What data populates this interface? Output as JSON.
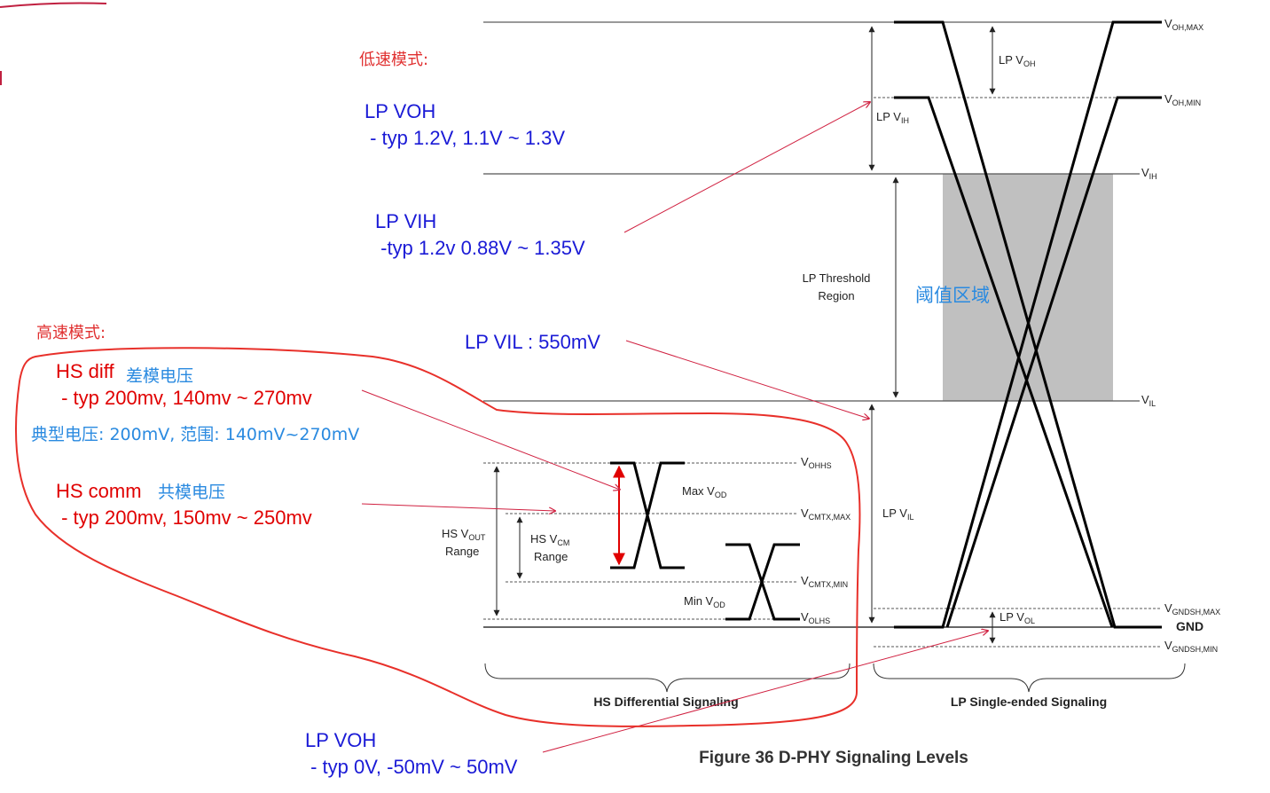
{
  "labels": {
    "voh_max": "V",
    "voh_max_sub": "OH,MAX",
    "voh_min": "V",
    "voh_min_sub": "OH,MIN",
    "vih": "V",
    "vih_sub": "IH",
    "vil": "V",
    "vil_sub": "IL",
    "vgndsh_max": "V",
    "vgndsh_max_sub": "GNDSH,MAX",
    "gnd": "GND",
    "vgndsh_min": "V",
    "vgndsh_min_sub": "GNDSH,MIN",
    "vohhs": "V",
    "vohhs_sub": "OHHS",
    "vcmtx_max": "V",
    "vcmtx_max_sub": "CMTX,MAX",
    "vcmtx_min": "V",
    "vcmtx_min_sub": "CMTX,MIN",
    "volhs": "V",
    "volhs_sub": "OLHS",
    "lp_voh": "LP V",
    "lp_voh_sub": "OH",
    "lp_vih": "LP V",
    "lp_vih_sub": "IH",
    "lp_threshold_1": "LP Threshold",
    "lp_threshold_2": "Region",
    "lp_vil": "LP V",
    "lp_vil_sub": "IL",
    "lp_vol": "LP V",
    "lp_vol_sub": "OL",
    "hs_vout_1": "HS V",
    "hs_vout_sub": "OUT",
    "hs_vout_2": "Range",
    "hs_vcm_1": "HS V",
    "hs_vcm_sub": "CM",
    "hs_vcm_2": "Range",
    "max_vod": "Max V",
    "max_vod_sub": "OD",
    "min_vod": "Min V",
    "min_vod_sub": "OD",
    "hs_section": "HS Differential Signaling",
    "lp_section": "LP Single-ended Signaling",
    "figure_caption": "Figure 36 D-PHY Signaling Levels"
  },
  "annotations": {
    "low_speed_mode": "低速模式:",
    "lp_voh_title": "LP VOH",
    "lp_voh_value": " - typ 1.2V, 1.1V ~ 1.3V",
    "lp_vih_title": "LP VIH",
    "lp_vih_value": " -typ 1.2v 0.88V ~ 1.35V",
    "threshold_zone": "阈值区域",
    "lp_vil_line": "LP VIL : 550mV",
    "high_speed_mode": "高速模式:",
    "hs_diff": "HS diff",
    "hs_diff_cn": "差模电压",
    "hs_diff_value": " - typ 200mv, 140mv ~ 270mv",
    "hs_diff_cn_value": "典型电压: 200mV, 范围: 140mV~270mV",
    "hs_comm": "HS comm",
    "hs_comm_cn": "共模电压",
    "hs_comm_value": " - typ 200mv, 150mv ~ 250mv",
    "lp_vol_title": "LP VOH",
    "lp_vol_value": " - typ 0V, -50mV ~ 50mV"
  },
  "colors": {
    "annotation_blue": "#1a1ad6",
    "annotation_red": "#e00000",
    "annotation_light_blue": "#2a8ae0",
    "threshold_fill": "#c0c0c0"
  }
}
